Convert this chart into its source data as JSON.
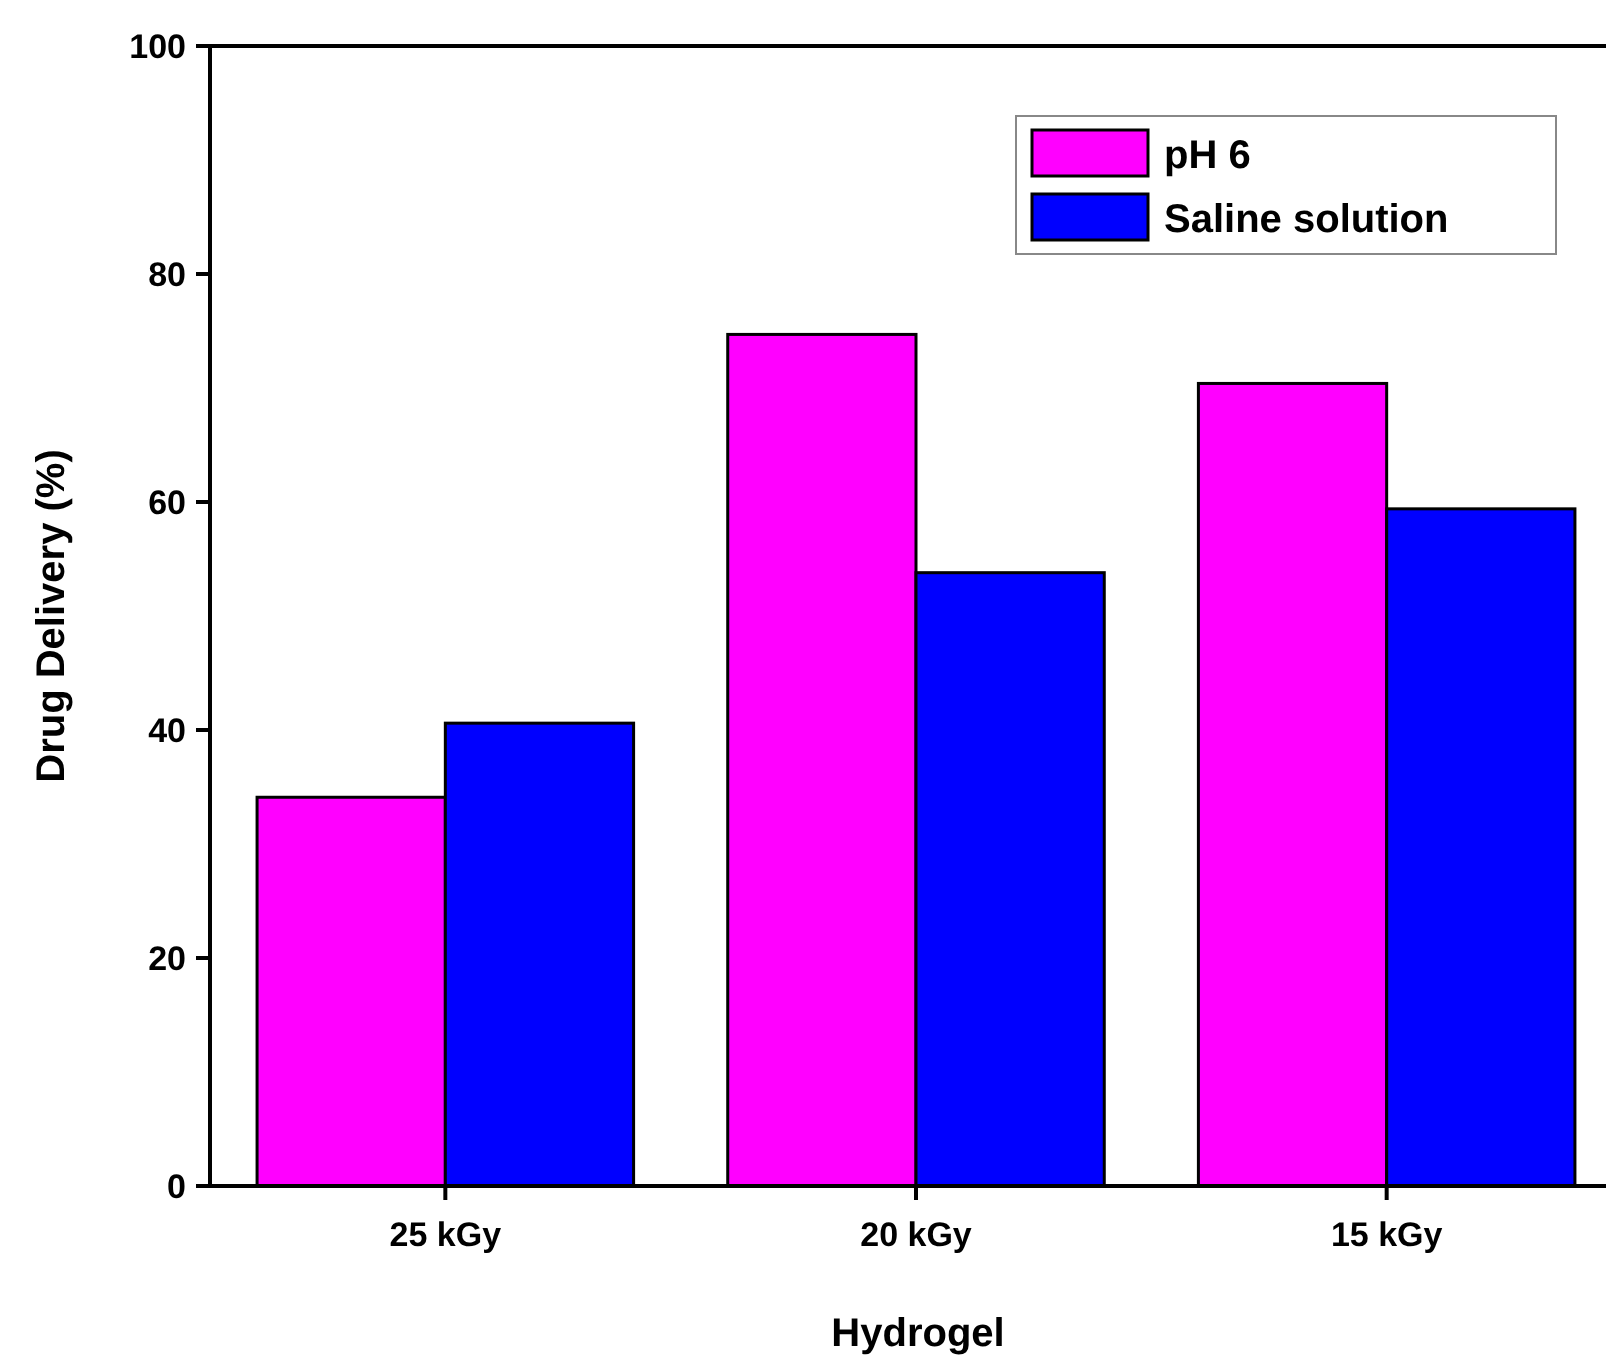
{
  "chart_data": {
    "type": "bar",
    "xlabel": "Hydrogel",
    "ylabel": "Drug Delivery (%)",
    "categories": [
      "25 kGy",
      "20 kGy",
      "15 kGy"
    ],
    "series": [
      {
        "name": "pH 6",
        "color": "#ff00ff",
        "values": [
          34.1,
          74.7,
          70.4
        ]
      },
      {
        "name": "Saline solution",
        "color": "#0000ff",
        "values": [
          40.6,
          53.8,
          59.4
        ]
      }
    ],
    "ylim": [
      0,
      100
    ],
    "yticks": [
      0,
      20,
      40,
      60,
      80,
      100
    ],
    "grid": false,
    "legend": "top right"
  }
}
